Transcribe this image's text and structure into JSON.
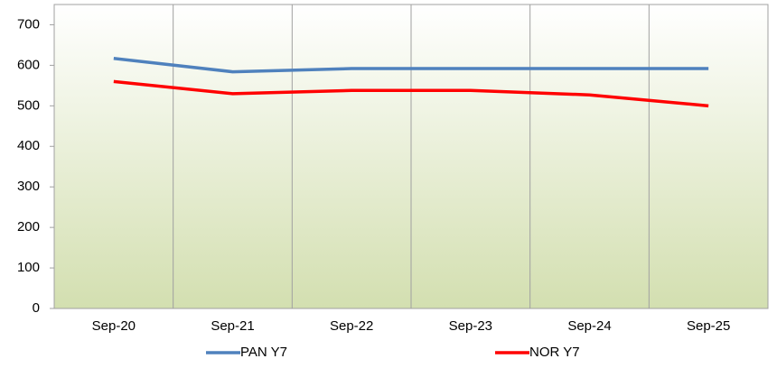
{
  "chart_data": {
    "type": "line",
    "categories": [
      "Sep-20",
      "Sep-21",
      "Sep-22",
      "Sep-23",
      "Sep-24",
      "Sep-25"
    ],
    "series": [
      {
        "name": "PAN Y7",
        "color": "#4f81bd",
        "values": [
          617,
          584,
          592,
          592,
          592,
          592
        ]
      },
      {
        "name": "NOR Y7",
        "color": "#ff0000",
        "values": [
          560,
          530,
          538,
          538,
          527,
          500
        ]
      }
    ],
    "ylim": [
      0,
      750
    ],
    "yticks": [
      0,
      100,
      200,
      300,
      400,
      500,
      600,
      700
    ],
    "grid": "x",
    "legend": "bottom"
  }
}
